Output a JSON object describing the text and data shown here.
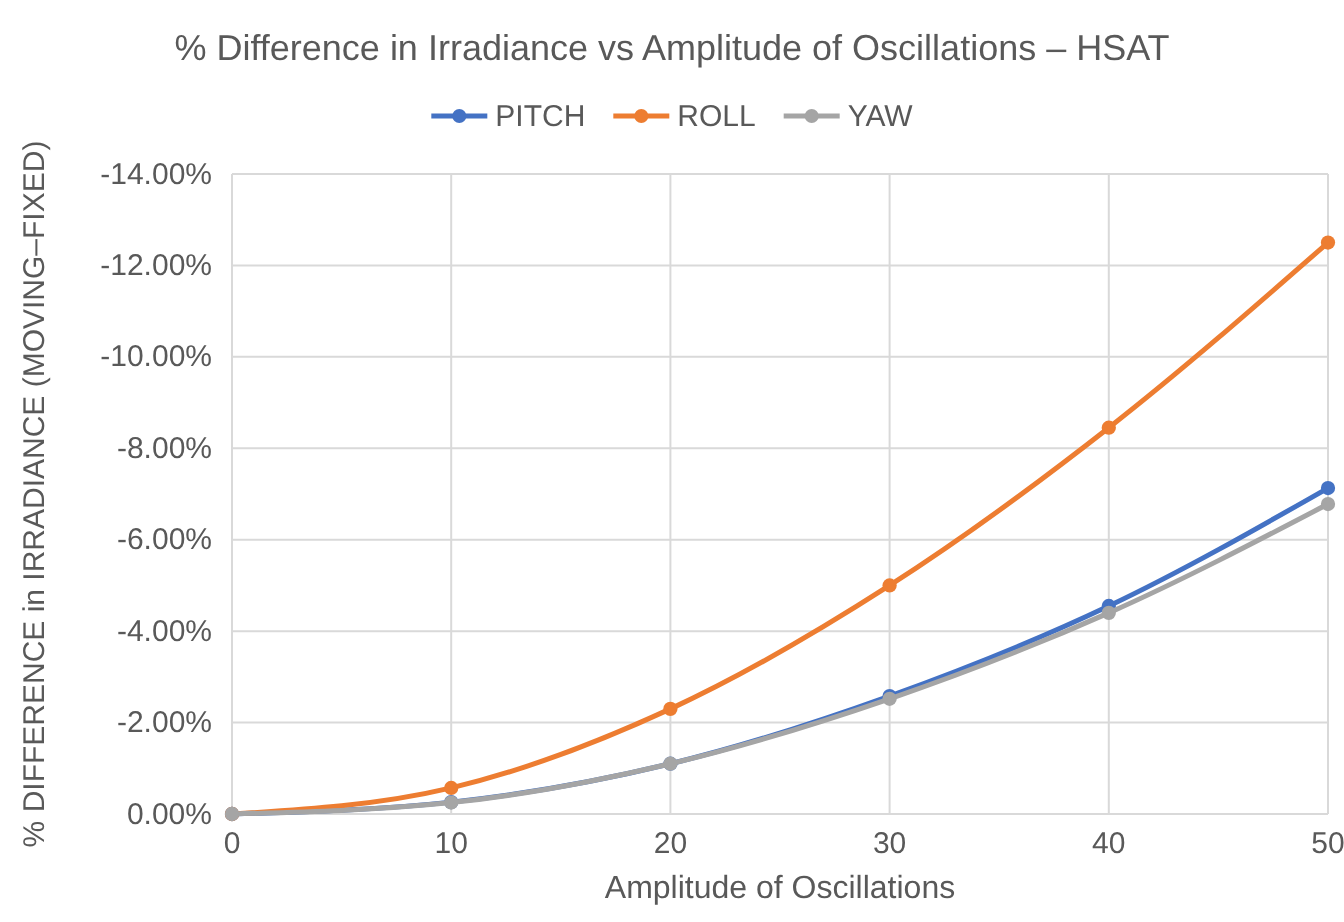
{
  "chart_data": {
    "type": "line",
    "title": "% Difference in Irradiance vs Amplitude of Oscillations – HSAT",
    "xlabel": "Amplitude of Oscillations",
    "ylabel": "% DIFFERENCE in IRRADIANCE (MOVING–FIXED)",
    "x": [
      0,
      10,
      20,
      30,
      40,
      50
    ],
    "series": [
      {
        "name": "PITCH",
        "color": "#4472c4",
        "values": [
          0,
          -0.26,
          -1.1,
          -2.58,
          -4.55,
          -7.13
        ]
      },
      {
        "name": "ROLL",
        "color": "#ed7d31",
        "values": [
          0,
          -0.57,
          -2.3,
          -5.0,
          -8.45,
          -12.5
        ]
      },
      {
        "name": "YAW",
        "color": "#a5a5a5",
        "values": [
          0,
          -0.25,
          -1.1,
          -2.52,
          -4.4,
          -6.78
        ]
      }
    ],
    "xlim": [
      0,
      50
    ],
    "xticks": [
      0,
      10,
      20,
      30,
      40,
      50
    ],
    "ylim": [
      0,
      -14
    ],
    "yticks": [
      {
        "value": 0,
        "label": "0.00%"
      },
      {
        "value": -2,
        "label": "-2.00%"
      },
      {
        "value": -4,
        "label": "-4.00%"
      },
      {
        "value": -6,
        "label": "-6.00%"
      },
      {
        "value": -8,
        "label": "-8.00%"
      },
      {
        "value": -10,
        "label": "-10.00%"
      },
      {
        "value": -12,
        "label": "-12.00%"
      },
      {
        "value": -14,
        "label": "-14.00%"
      }
    ],
    "grid": true,
    "legend": "top",
    "marker": "circle",
    "line_style": "solid"
  }
}
